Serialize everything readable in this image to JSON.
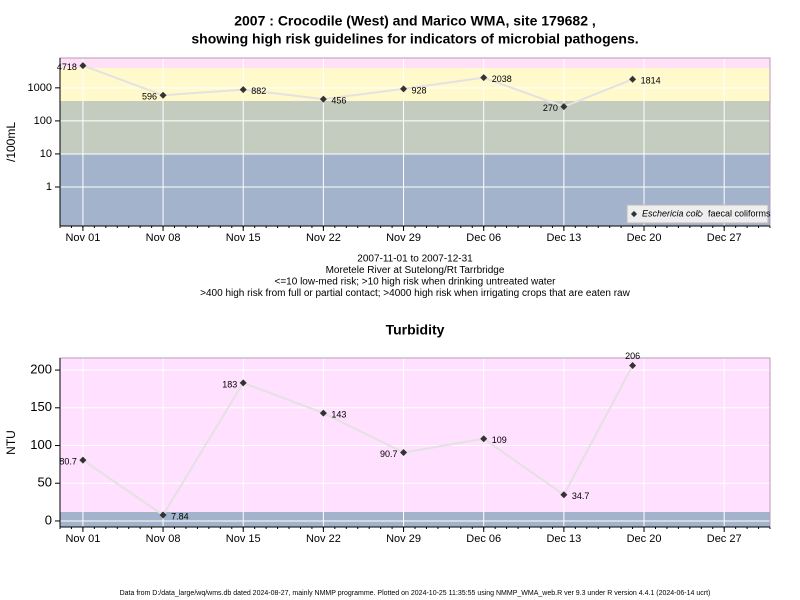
{
  "chart_data": [
    {
      "type": "line",
      "log_y": true,
      "title": [
        "2007 : Crocodile (West) and Marico WMA, site 179682 ,",
        "showing high risk guidelines for indicators of microbial pathogens."
      ],
      "ylabel": "/100mL",
      "notes": [
        "2007-11-01 to 2007-12-31",
        "Moretele River at Sutelong/Rt Tarrbridge",
        "<=10 low-med risk; >10 high risk when drinking untreated water",
        ">400 high risk from full or partial contact; >4000 high risk when irrigating crops that are eaten raw"
      ],
      "x": [
        "2007-11-01",
        "2007-11-08",
        "2007-11-15",
        "2007-11-22",
        "2007-11-29",
        "2007-12-06",
        "2007-12-13",
        "2007-12-19"
      ],
      "series": [
        {
          "name": "Eschericia coli",
          "color": "#333333",
          "values": [
            4718,
            596,
            882,
            456,
            928,
            2038,
            270,
            1814
          ]
        },
        {
          "name": "faecal coliforms",
          "color": "#333333",
          "values": [
            null,
            null,
            null,
            null,
            null,
            null,
            null,
            null
          ]
        }
      ],
      "line_color": "#e2e2e2",
      "xlim": [
        "2007-10-30",
        "2007-12-31"
      ],
      "xticks": [
        {
          "value": "2007-11-01",
          "label": "Nov 01"
        },
        {
          "value": "2007-11-08",
          "label": "Nov 08"
        },
        {
          "value": "2007-11-15",
          "label": "Nov 15"
        },
        {
          "value": "2007-11-22",
          "label": "Nov 22"
        },
        {
          "value": "2007-11-29",
          "label": "Nov 29"
        },
        {
          "value": "2007-12-06",
          "label": "Dec 06"
        },
        {
          "value": "2007-12-13",
          "label": "Dec 13"
        },
        {
          "value": "2007-12-20",
          "label": "Dec 20"
        },
        {
          "value": "2007-12-27",
          "label": "Dec 27"
        }
      ],
      "ylim": [
        0.066,
        8000
      ],
      "yticks": [
        1,
        10,
        100,
        1000
      ],
      "bands": [
        {
          "lower": null,
          "upper": 10,
          "color": "#a3b3cb"
        },
        {
          "lower": 10,
          "upper": 400,
          "color": "#c4ccc0"
        },
        {
          "lower": 400,
          "upper": 4000,
          "color": "#fff9cc"
        },
        {
          "lower": 4000,
          "upper": null,
          "color": "#ffe0f6"
        }
      ],
      "grid": true,
      "legend": "bottom-right"
    },
    {
      "type": "line",
      "log_y": false,
      "title": [
        "Turbidity"
      ],
      "ylabel": "NTU",
      "x": [
        "2007-11-01",
        "2007-11-08",
        "2007-11-15",
        "2007-11-22",
        "2007-11-29",
        "2007-12-06",
        "2007-12-13",
        "2007-12-19"
      ],
      "series": [
        {
          "color": "#333333",
          "values": [
            80.7,
            7.84,
            183,
            143,
            90.7,
            109,
            34.7,
            206
          ]
        }
      ],
      "line_color": "#e2e2e2",
      "xlim": [
        "2007-10-30",
        "2007-12-31"
      ],
      "xticks": [
        {
          "value": "2007-11-01",
          "label": "Nov 01"
        },
        {
          "value": "2007-11-08",
          "label": "Nov 08"
        },
        {
          "value": "2007-11-15",
          "label": "Nov 15"
        },
        {
          "value": "2007-11-22",
          "label": "Nov 22"
        },
        {
          "value": "2007-11-29",
          "label": "Nov 29"
        },
        {
          "value": "2007-12-06",
          "label": "Dec 06"
        },
        {
          "value": "2007-12-13",
          "label": "Dec 13"
        },
        {
          "value": "2007-12-20",
          "label": "Dec 20"
        },
        {
          "value": "2007-12-27",
          "label": "Dec 27"
        }
      ],
      "ylim": [
        -8,
        216
      ],
      "yticks": [
        0,
        50,
        100,
        150,
        200
      ],
      "bands": [
        {
          "lower": null,
          "upper": 12,
          "color": "#a3b3cb"
        },
        {
          "lower": 12,
          "upper": null,
          "color": "#ffe0fe"
        }
      ],
      "grid": true
    }
  ],
  "footer": "Data from D:/data_large/wq/wms.db dated 2024-08-27, mainly NMMP programme. Plotted on 2024-10-25 11:35:55 using NMMP_WMA_web.R ver 9.3 under R version 4.4.1 (2024-06-14 ucrt)"
}
